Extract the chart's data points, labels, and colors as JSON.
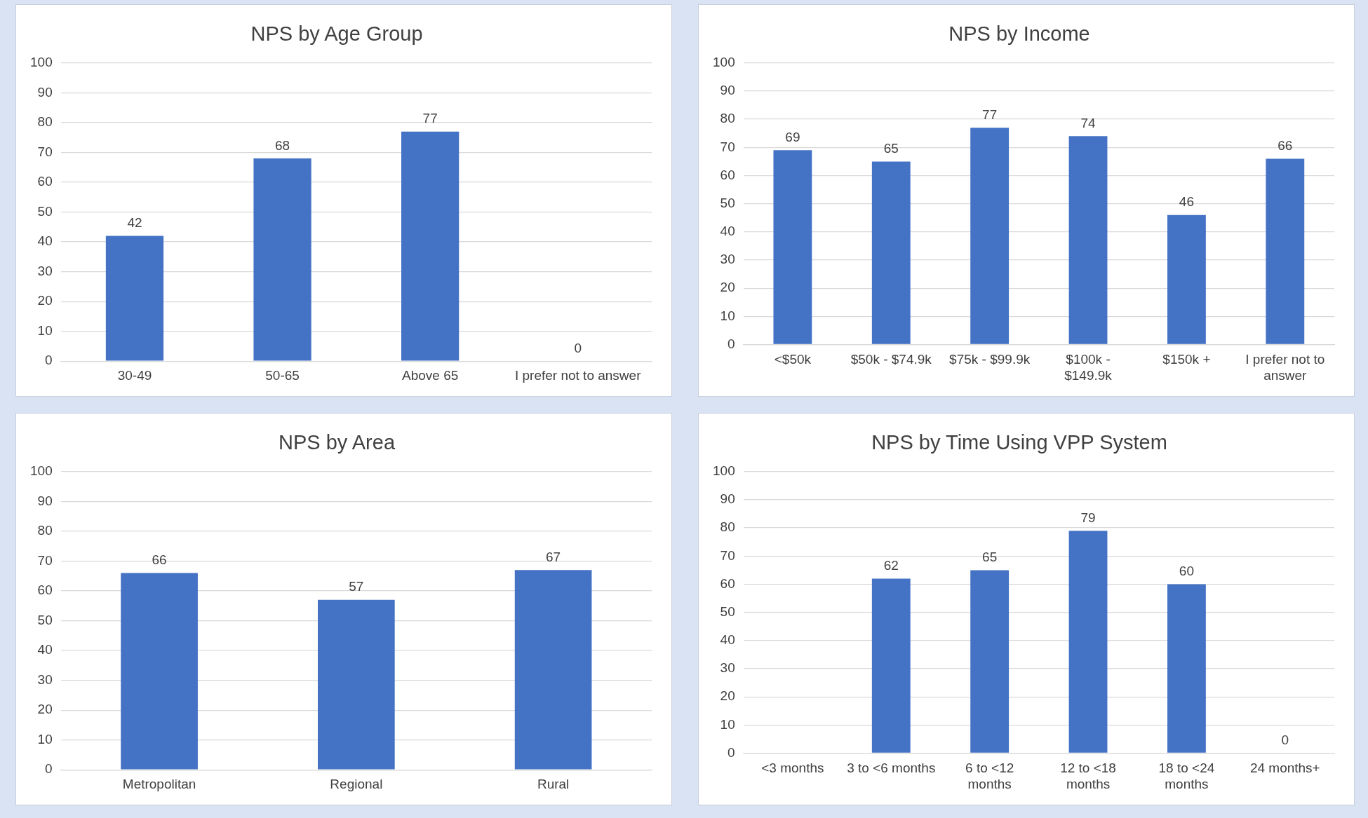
{
  "chart_data": [
    {
      "type": "bar",
      "title": "NPS by Age Group",
      "categories": [
        "30-49",
        "50-65",
        "Above 65",
        "I prefer not to answer"
      ],
      "values": [
        42,
        68,
        77,
        0
      ],
      "color": "#4472c4",
      "ylim": [
        0,
        100
      ],
      "yticks": [
        0,
        10,
        20,
        30,
        40,
        50,
        60,
        70,
        80,
        90,
        100
      ],
      "grid": "y",
      "legend": false,
      "data_labels": true
    },
    {
      "type": "bar",
      "title": "NPS by Income",
      "categories": [
        "<$50k",
        "$50k - $74.9k",
        "$75k - $99.9k",
        "$100k - $149.9k",
        "$150k +",
        "I prefer not to answer"
      ],
      "values": [
        69,
        65,
        77,
        74,
        46,
        66
      ],
      "color": "#4472c4",
      "ylim": [
        0,
        100
      ],
      "yticks": [
        0,
        10,
        20,
        30,
        40,
        50,
        60,
        70,
        80,
        90,
        100
      ],
      "grid": "y",
      "legend": false,
      "data_labels": true
    },
    {
      "type": "bar",
      "title": "NPS by Area",
      "categories": [
        "Metropolitan",
        "Regional",
        "Rural"
      ],
      "values": [
        66,
        57,
        67
      ],
      "color": "#4472c4",
      "ylim": [
        0,
        100
      ],
      "yticks": [
        0,
        10,
        20,
        30,
        40,
        50,
        60,
        70,
        80,
        90,
        100
      ],
      "grid": "y",
      "legend": false,
      "data_labels": true
    },
    {
      "type": "bar",
      "title": "NPS by Time Using VPP System",
      "categories": [
        "<3 months",
        "3 to <6 months",
        "6 to <12 months",
        "12 to <18 months",
        "18 to <24 months",
        "24 months+"
      ],
      "values": [
        null,
        62,
        65,
        79,
        60,
        0
      ],
      "color": "#4472c4",
      "ylim": [
        0,
        100
      ],
      "yticks": [
        0,
        10,
        20,
        30,
        40,
        50,
        60,
        70,
        80,
        90,
        100
      ],
      "grid": "y",
      "legend": false,
      "data_labels": true
    }
  ]
}
